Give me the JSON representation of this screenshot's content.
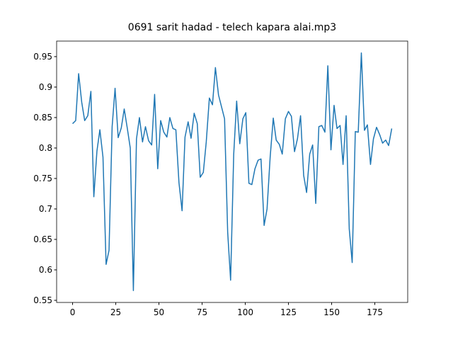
{
  "chart_data": {
    "type": "line",
    "title": "0691 sarit hadad - telech kapara alai.mp3",
    "x": [
      0,
      1.8,
      3.5,
      5.3,
      7.0,
      8.8,
      10.6,
      12.3,
      14.1,
      15.8,
      17.6,
      19.4,
      21.1,
      22.9,
      24.6,
      26.4,
      28.2,
      29.9,
      31.7,
      33.4,
      35.2,
      37.0,
      38.7,
      40.5,
      42.2,
      44.0,
      45.8,
      47.5,
      49.3,
      51.0,
      52.8,
      54.6,
      56.3,
      58.1,
      59.8,
      61.6,
      63.4,
      65.1,
      66.9,
      68.6,
      70.4,
      72.2,
      73.9,
      75.7,
      77.4,
      79.2,
      81.0,
      82.7,
      84.5,
      86.2,
      88.0,
      89.8,
      91.5,
      93.3,
      95.0,
      96.8,
      98.6,
      100.3,
      102.1,
      103.8,
      105.6,
      107.4,
      109.1,
      110.9,
      112.6,
      114.4,
      116.2,
      117.9,
      119.7,
      121.4,
      123.2,
      125.0,
      126.7,
      128.5,
      130.2,
      132.0,
      133.8,
      135.5,
      137.3,
      139.0,
      140.8,
      142.6,
      144.3,
      146.1,
      147.8,
      149.6,
      151.4,
      153.1,
      154.9,
      156.6,
      158.4,
      160.2,
      161.9,
      163.7,
      165.4,
      167.2,
      169.0,
      170.7,
      172.5,
      174.2,
      176.0,
      177.8,
      179.5,
      181.3,
      183.0,
      184.8
    ],
    "series": [
      {
        "color": "#1f77b4",
        "values": [
          0.84,
          0.845,
          0.922,
          0.875,
          0.845,
          0.853,
          0.893,
          0.72,
          0.795,
          0.83,
          0.785,
          0.609,
          0.632,
          0.835,
          0.898,
          0.817,
          0.833,
          0.864,
          0.832,
          0.8,
          0.566,
          0.815,
          0.85,
          0.81,
          0.835,
          0.812,
          0.805,
          0.888,
          0.766,
          0.845,
          0.826,
          0.818,
          0.85,
          0.832,
          0.83,
          0.743,
          0.697,
          0.818,
          0.843,
          0.816,
          0.857,
          0.84,
          0.752,
          0.76,
          0.81,
          0.882,
          0.871,
          0.932,
          0.887,
          0.868,
          0.848,
          0.662,
          0.583,
          0.79,
          0.877,
          0.807,
          0.848,
          0.858,
          0.742,
          0.74,
          0.766,
          0.78,
          0.782,
          0.673,
          0.7,
          0.785,
          0.849,
          0.813,
          0.806,
          0.79,
          0.848,
          0.86,
          0.852,
          0.794,
          0.815,
          0.853,
          0.755,
          0.727,
          0.79,
          0.805,
          0.709,
          0.835,
          0.837,
          0.826,
          0.935,
          0.797,
          0.87,
          0.832,
          0.837,
          0.773,
          0.853,
          0.667,
          0.612,
          0.827,
          0.826,
          0.956,
          0.829,
          0.838,
          0.773,
          0.815,
          0.834,
          0.822,
          0.808,
          0.813,
          0.804,
          0.832
        ]
      }
    ],
    "xlim": [
      -9.24,
      194.04
    ],
    "xticks": [
      0,
      25,
      50,
      75,
      100,
      125,
      150,
      175
    ],
    "ylim": [
      0.5465,
      0.9755
    ],
    "yticks": [
      0.55,
      0.6,
      0.65,
      0.7,
      0.75,
      0.8,
      0.85,
      0.9,
      0.95
    ]
  }
}
